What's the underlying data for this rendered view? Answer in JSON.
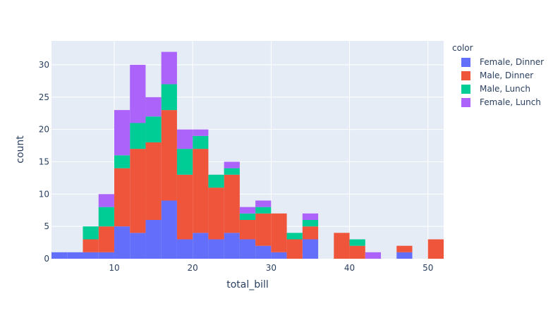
{
  "chart_data": {
    "type": "bar",
    "barmode": "stack",
    "xlabel": "total_bill",
    "ylabel": "count",
    "xlim": [
      2,
      52
    ],
    "ylim": [
      0,
      33.7
    ],
    "bin_start": 2,
    "bin_size": 2,
    "x_ticks": [
      10,
      20,
      30,
      40,
      50
    ],
    "y_ticks": [
      0,
      5,
      10,
      15,
      20,
      25,
      30
    ],
    "grid": true,
    "legend_title": "color",
    "legend_position": "right",
    "background_color": "#e5ecf6",
    "series": [
      {
        "name": "Female, Dinner",
        "color": "#636efa",
        "values": [
          1,
          1,
          1,
          1,
          5,
          4,
          6,
          9,
          3,
          4,
          3,
          4,
          3,
          2,
          1,
          0,
          3,
          0,
          0,
          0,
          0,
          0,
          1,
          0,
          0
        ]
      },
      {
        "name": "Male, Dinner",
        "color": "#ef553b",
        "values": [
          0,
          0,
          2,
          4,
          9,
          13,
          12,
          14,
          10,
          13,
          8,
          9,
          3,
          5,
          6,
          3,
          2,
          0,
          4,
          2,
          0,
          0,
          1,
          0,
          3
        ]
      },
      {
        "name": "Male, Lunch",
        "color": "#00cc96",
        "values": [
          0,
          0,
          2,
          3,
          2,
          4,
          4,
          4,
          4,
          2,
          2,
          1,
          1,
          1,
          0,
          1,
          1,
          0,
          0,
          1,
          0,
          0,
          0,
          0,
          0
        ]
      },
      {
        "name": "Female, Lunch",
        "color": "#ab63fa",
        "values": [
          0,
          0,
          0,
          2,
          7,
          9,
          3,
          5,
          3,
          1,
          0,
          1,
          1,
          1,
          0,
          0,
          1,
          0,
          0,
          0,
          1,
          0,
          0,
          0,
          0
        ]
      }
    ]
  }
}
